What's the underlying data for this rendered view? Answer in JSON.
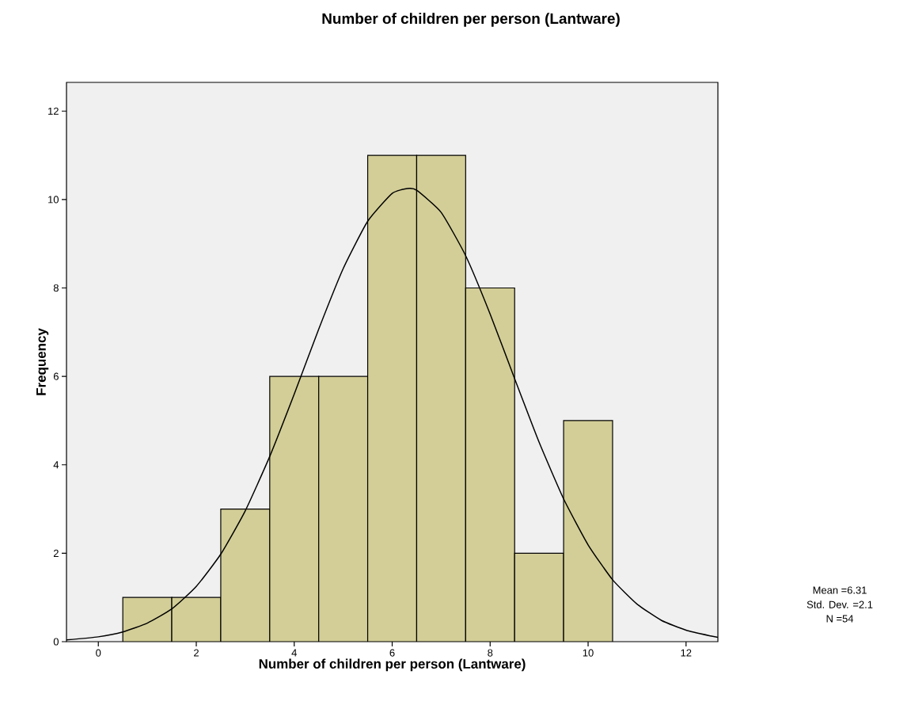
{
  "chart_data": {
    "type": "histogram",
    "title": "Number of children per person (Lantware)",
    "xlabel": "Number of children per person (Lantware)",
    "ylabel": "Frequency",
    "bins": [
      0.5,
      1.5,
      2.5,
      3.5,
      4.5,
      5.5,
      6.5,
      7.5,
      8.5,
      9.5,
      10.5
    ],
    "values": [
      1,
      1,
      3,
      6,
      6,
      11,
      11,
      8,
      2,
      5
    ],
    "color": "#d3ce97",
    "series": [
      {
        "type": "line",
        "color": "#000000",
        "x": [
          -0.65,
          0,
          0.5,
          1,
          1.5,
          2,
          2.5,
          3,
          3.5,
          4,
          4.5,
          5,
          5.5,
          6,
          6.31,
          6.5,
          7,
          7.5,
          8,
          8.5,
          9,
          9.5,
          10,
          10.5,
          11,
          11.5,
          12,
          12.5,
          12.65
        ],
        "values": [
          0.04,
          0.11,
          0.22,
          0.42,
          0.74,
          1.25,
          1.98,
          2.96,
          4.19,
          5.6,
          7.07,
          8.44,
          9.51,
          10.14,
          10.25,
          10.21,
          9.71,
          8.73,
          7.41,
          5.95,
          4.51,
          3.23,
          2.19,
          1.4,
          0.85,
          0.48,
          0.26,
          0.13,
          0.1
        ]
      }
    ],
    "xlim": [
      -0.65,
      12.65
    ],
    "ylim": [
      0,
      12.65
    ],
    "xticks": [
      0,
      2,
      4,
      6,
      8,
      10,
      12
    ],
    "yticks": [
      0,
      2,
      4,
      6,
      8,
      10,
      12
    ],
    "grid": false,
    "annotations": [
      "Mean =6.31",
      "Std. Dev. =2.1",
      "N =54"
    ]
  }
}
